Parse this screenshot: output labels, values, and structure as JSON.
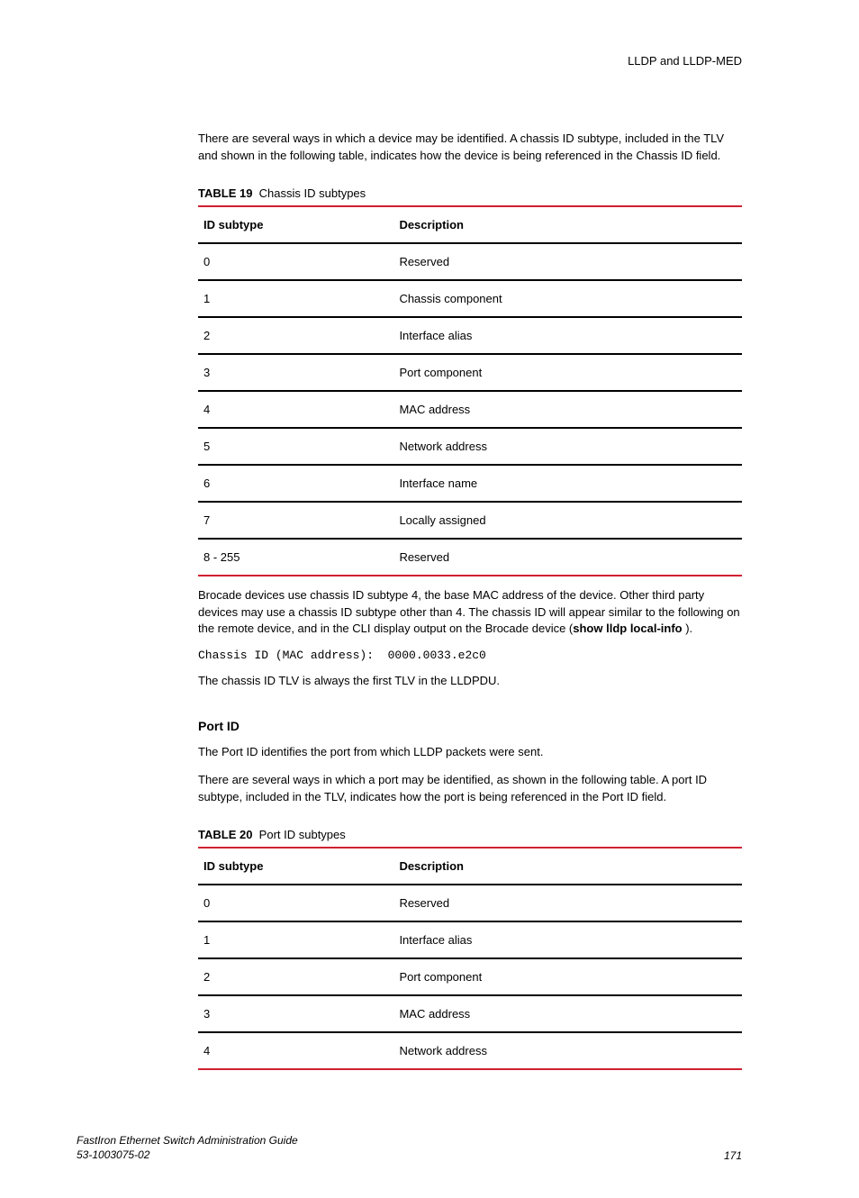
{
  "header": {
    "title": "LLDP and LLDP-MED"
  },
  "intro_para": "There are several ways in which a device may be identified. A chassis ID subtype, included in the TLV and shown in the following table, indicates how the device is being referenced in the Chassis ID field.",
  "table19": {
    "label_bold": "TABLE 19",
    "label_rest": "Chassis ID subtypes",
    "columns": [
      "ID subtype",
      "Description"
    ],
    "rows": [
      [
        "0",
        "Reserved"
      ],
      [
        "1",
        "Chassis component"
      ],
      [
        "2",
        "Interface alias"
      ],
      [
        "3",
        "Port component"
      ],
      [
        "4",
        "MAC address"
      ],
      [
        "5",
        "Network address"
      ],
      [
        "6",
        "Interface name"
      ],
      [
        "7",
        "Locally assigned"
      ],
      [
        "8 - 255",
        "Reserved"
      ]
    ]
  },
  "after_t19_para": {
    "pre": "Brocade devices use chassis ID subtype 4, the base MAC address of the device. Other third party devices may use a chassis ID subtype other than 4. The chassis ID will appear similar to the following on the remote device, and in the CLI display output on the Brocade device (",
    "bold": "show lldp local-info",
    "post": " )."
  },
  "code_line": "Chassis ID (MAC address):  0000.0033.e2c0",
  "tlv_para": "The chassis ID TLV is always the first TLV in the LLDPDU.",
  "portid_heading": "Port ID",
  "portid_para1": "The Port ID identifies the port from which LLDP packets were sent.",
  "portid_para2": "There are several ways in which a port may be identified, as shown in the following table. A port ID subtype, included in the TLV, indicates how the port is being referenced in the Port ID field.",
  "table20": {
    "label_bold": "TABLE 20",
    "label_rest": "Port ID subtypes",
    "columns": [
      "ID subtype",
      "Description"
    ],
    "rows": [
      [
        "0",
        "Reserved"
      ],
      [
        "1",
        "Interface alias"
      ],
      [
        "2",
        "Port component"
      ],
      [
        "3",
        "MAC address"
      ],
      [
        "4",
        "Network address"
      ]
    ]
  },
  "footer": {
    "guide": "FastIron Ethernet Switch Administration Guide",
    "docnum": "53-1003075-02",
    "page": "171"
  },
  "colors": {
    "accent": "#d02030",
    "text": "#000000",
    "background": "#ffffff"
  }
}
